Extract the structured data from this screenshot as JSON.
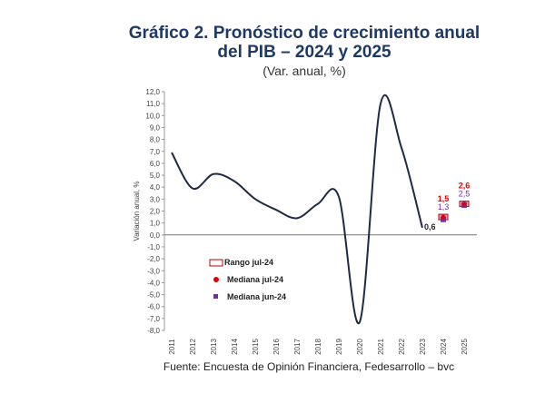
{
  "chart_data": {
    "type": "line",
    "title": "Gráfico 2. Pronóstico de crecimiento anual del PIB – 2024 y 2025",
    "title_line1": "Gráfico 2. Pronóstico de crecimiento anual",
    "title_line2": "del PIB – 2024 y 2025",
    "subtitle": "(Var. anual, %)",
    "ylabel": "Variación anual, %",
    "xlabel": "",
    "ylim": [
      -8,
      12
    ],
    "yticks": [
      "12,0",
      "11,0",
      "10,0",
      "9,0",
      "8,0",
      "7,0",
      "6,0",
      "5,0",
      "4,0",
      "3,0",
      "2,0",
      "1,0",
      "0,0",
      "-1,0",
      "-2,0",
      "-3,0",
      "-4,0",
      "-5,0",
      "-6,0",
      "-7,0",
      "-8,0"
    ],
    "categories": [
      "2011",
      "2012",
      "2013",
      "2014",
      "2015",
      "2016",
      "2017",
      "2018",
      "2019",
      "2020",
      "2021",
      "2022",
      "2023",
      "2024",
      "2025"
    ],
    "series": [
      {
        "values": [
          6.9,
          3.9,
          5.1,
          4.5,
          3.0,
          2.1,
          1.4,
          2.6,
          3.2,
          -7.3,
          11.0,
          7.3,
          0.6,
          null,
          null
        ],
        "color": "#1f2a44"
      },
      {
        "name": "Mediana jul-24",
        "values": [
          null,
          null,
          null,
          null,
          null,
          null,
          null,
          null,
          null,
          null,
          null,
          null,
          null,
          1.5,
          2.6
        ],
        "color": "#e00000"
      },
      {
        "name": "Mediana jun-24",
        "values": [
          null,
          null,
          null,
          null,
          null,
          null,
          null,
          null,
          null,
          null,
          null,
          null,
          null,
          1.3,
          2.5
        ],
        "color": "#7030a0"
      }
    ],
    "range_label": "Rango jul-24",
    "data_labels": {
      "2023": "0,6",
      "2024_jul": "1,5",
      "2024_jun": "1,3",
      "2025_jul": "2,6",
      "2025_jun": "2,5"
    },
    "legend": [
      "Rango jul-24",
      "Mediana jul-24",
      "Mediana jun-24"
    ],
    "legend_placement": "lower-left inside",
    "grid": false
  },
  "source": "Fuente: Encuesta de Opinión Financiera, Fedesarrollo – bvc"
}
